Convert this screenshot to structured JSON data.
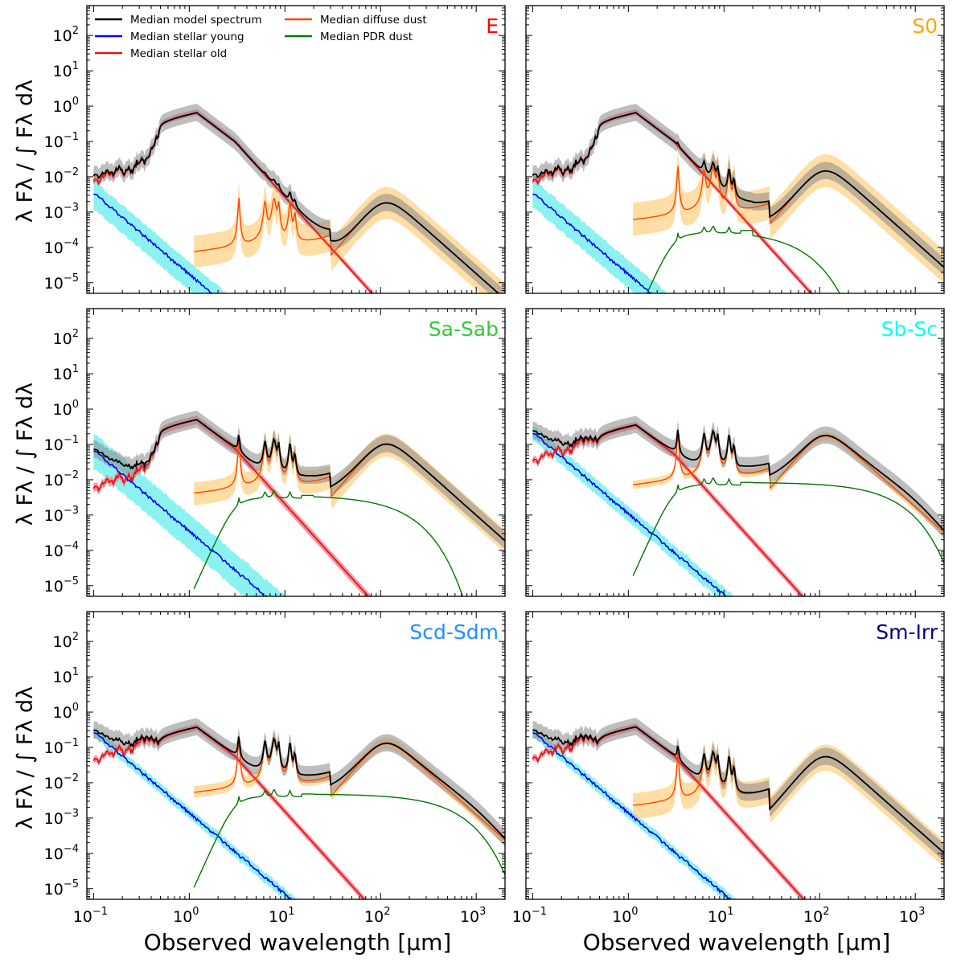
{
  "chart_data": {
    "type": "line",
    "layout": "3 rows x 2 columns, shared axes",
    "xlabel": "Observed wavelength [μm]",
    "ylabel": "λ Fλ / ∫ Fλ dλ",
    "x_scale": "log",
    "y_scale": "log",
    "xlim": [
      0.085,
      2000
    ],
    "ylim": [
      5e-06,
      700
    ],
    "x_ticks": [
      {
        "v": 0.1,
        "b": "10",
        "e": "−1"
      },
      {
        "v": 1,
        "b": "10",
        "e": "0"
      },
      {
        "v": 10,
        "b": "10",
        "e": "1"
      },
      {
        "v": 100,
        "b": "10",
        "e": "2"
      },
      {
        "v": 1000,
        "b": "10",
        "e": "3"
      }
    ],
    "y_ticks": [
      {
        "v": 1e-05,
        "b": "10",
        "e": "−5"
      },
      {
        "v": 0.0001,
        "b": "10",
        "e": "−4"
      },
      {
        "v": 0.001,
        "b": "10",
        "e": "−3"
      },
      {
        "v": 0.01,
        "b": "10",
        "e": "−2"
      },
      {
        "v": 0.1,
        "b": "10",
        "e": "−1"
      },
      {
        "v": 1,
        "b": "10",
        "e": "0"
      },
      {
        "v": 10,
        "b": "10",
        "e": "1"
      },
      {
        "v": 100,
        "b": "10",
        "e": "2"
      }
    ],
    "legend": {
      "placement": "top-left of first panel",
      "entries": [
        {
          "label": "Median model spectrum",
          "color": "#000000"
        },
        {
          "label": "Median stellar young",
          "color": "#0000ee"
        },
        {
          "label": "Median stellar old",
          "color": "#ee1111"
        },
        {
          "label": "Median diffuse dust",
          "color": "#ff4400"
        },
        {
          "label": "Median PDR dust",
          "color": "#007700"
        }
      ]
    },
    "band_colors": {
      "total": "#888888",
      "young": "#77eeee",
      "old": "#ee7788",
      "diffuse": "#ffcc77",
      "pdr": "#b8d8b8"
    },
    "panels": [
      {
        "label": "E",
        "label_color": "#ff0000",
        "young_amp": 0.0035,
        "young_band": [
          0.35,
          2.2
        ],
        "old_amp": 0.65,
        "old_band": [
          0.85,
          1.25
        ],
        "old_uv": 0.012,
        "diffuse_amp": 0.002,
        "diffuse_band": [
          0.35,
          2.8
        ],
        "pdr_amp": 0,
        "pdr_mid": 0,
        "pdr_cut": 0
      },
      {
        "label": "S0",
        "label_color": "#ffa500",
        "young_amp": 0.0035,
        "young_band": [
          0.4,
          2.5
        ],
        "old_amp": 0.65,
        "old_band": [
          0.85,
          1.25
        ],
        "old_uv": 0.012,
        "diffuse_amp": 0.016,
        "diffuse_band": [
          0.35,
          3.0
        ],
        "pdr_amp": 0.00025,
        "pdr_mid": 0.00028,
        "pdr_cut": 0.05
      },
      {
        "label": "Sa-Sab",
        "label_color": "#32cd32",
        "young_amp": 0.07,
        "young_band": [
          0.3,
          3.0
        ],
        "old_amp": 0.5,
        "old_band": [
          0.75,
          1.3
        ],
        "old_uv": 0.012,
        "diffuse_amp": 0.11,
        "diffuse_band": [
          0.45,
          2.0
        ],
        "pdr_amp": 0.003,
        "pdr_mid": 0.004,
        "pdr_cut": 0.15
      },
      {
        "label": "Sb-Sc",
        "label_color": "#00ffff",
        "young_amp": 0.22,
        "young_band": [
          0.6,
          1.6
        ],
        "old_amp": 0.35,
        "old_band": [
          0.8,
          1.25
        ],
        "old_uv": 0.1,
        "diffuse_amp": 0.19,
        "diffuse_band": [
          0.75,
          1.3
        ],
        "pdr_amp": 0.007,
        "pdr_mid": 0.009,
        "pdr_cut": 0.5
      },
      {
        "label": "Scd-Sdm",
        "label_color": "#1e90ff",
        "young_amp": 0.28,
        "young_band": [
          0.7,
          1.4
        ],
        "old_amp": 0.37,
        "old_band": [
          0.8,
          1.25
        ],
        "old_uv": 0.12,
        "diffuse_amp": 0.14,
        "diffuse_band": [
          0.7,
          1.5
        ],
        "pdr_amp": 0.004,
        "pdr_mid": 0.0055,
        "pdr_cut": 0.5
      },
      {
        "label": "Sm-Irr",
        "label_color": "#000080",
        "young_amp": 0.28,
        "young_band": [
          0.7,
          1.4
        ],
        "old_amp": 0.38,
        "old_band": [
          0.8,
          1.25
        ],
        "old_uv": 0.13,
        "diffuse_amp": 0.06,
        "diffuse_band": [
          0.4,
          2.2
        ],
        "pdr_amp": 0,
        "pdr_mid": 0,
        "pdr_cut": 0
      }
    ]
  }
}
